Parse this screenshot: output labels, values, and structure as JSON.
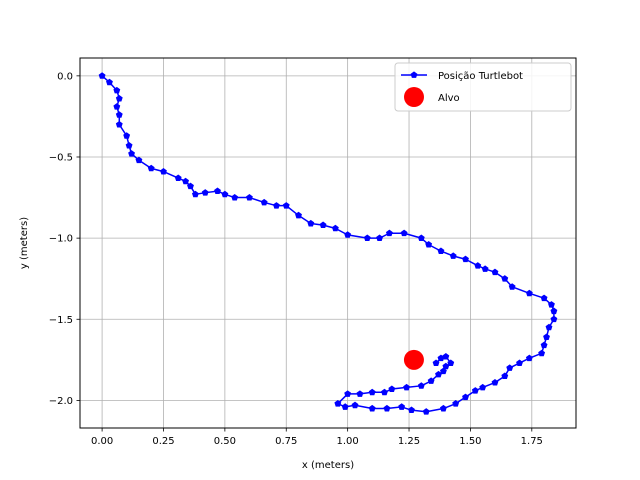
{
  "chart_data": {
    "type": "scatter",
    "title": "",
    "xlabel": "x (meters)",
    "ylabel": "y (meters)",
    "xlim": [
      -0.09,
      1.93
    ],
    "ylim": [
      -2.17,
      0.11
    ],
    "x_ticks": [
      0.0,
      0.25,
      0.5,
      0.75,
      1.0,
      1.25,
      1.5,
      1.75
    ],
    "x_tick_labels": [
      "0.00",
      "0.25",
      "0.50",
      "0.75",
      "1.00",
      "1.25",
      "1.50",
      "1.75"
    ],
    "y_ticks": [
      0.0,
      -0.5,
      -1.0,
      -1.5,
      -2.0
    ],
    "y_tick_labels": [
      "0.0",
      "−0.5",
      "−1.0",
      "−1.5",
      "−2.0"
    ],
    "grid": true,
    "legend_position": "top-right",
    "series": [
      {
        "name": "Posição Turtlebot",
        "style": "line-with-pentagon-markers",
        "color": "#0000ff",
        "points": [
          [
            0.0,
            0.0
          ],
          [
            0.03,
            -0.04
          ],
          [
            0.06,
            -0.09
          ],
          [
            0.07,
            -0.14
          ],
          [
            0.06,
            -0.19
          ],
          [
            0.07,
            -0.24
          ],
          [
            0.07,
            -0.3
          ],
          [
            0.1,
            -0.37
          ],
          [
            0.11,
            -0.43
          ],
          [
            0.12,
            -0.48
          ],
          [
            0.15,
            -0.52
          ],
          [
            0.2,
            -0.57
          ],
          [
            0.25,
            -0.59
          ],
          [
            0.31,
            -0.63
          ],
          [
            0.34,
            -0.65
          ],
          [
            0.36,
            -0.68
          ],
          [
            0.38,
            -0.73
          ],
          [
            0.42,
            -0.72
          ],
          [
            0.47,
            -0.71
          ],
          [
            0.5,
            -0.73
          ],
          [
            0.54,
            -0.75
          ],
          [
            0.6,
            -0.75
          ],
          [
            0.66,
            -0.78
          ],
          [
            0.71,
            -0.8
          ],
          [
            0.75,
            -0.8
          ],
          [
            0.8,
            -0.86
          ],
          [
            0.85,
            -0.91
          ],
          [
            0.9,
            -0.92
          ],
          [
            0.95,
            -0.94
          ],
          [
            1.0,
            -0.98
          ],
          [
            1.08,
            -1.0
          ],
          [
            1.13,
            -1.0
          ],
          [
            1.17,
            -0.97
          ],
          [
            1.23,
            -0.97
          ],
          [
            1.3,
            -1.0
          ],
          [
            1.33,
            -1.04
          ],
          [
            1.38,
            -1.08
          ],
          [
            1.43,
            -1.11
          ],
          [
            1.48,
            -1.13
          ],
          [
            1.53,
            -1.17
          ],
          [
            1.56,
            -1.19
          ],
          [
            1.6,
            -1.21
          ],
          [
            1.64,
            -1.25
          ],
          [
            1.67,
            -1.3
          ],
          [
            1.74,
            -1.34
          ],
          [
            1.8,
            -1.37
          ],
          [
            1.83,
            -1.41
          ],
          [
            1.84,
            -1.45
          ],
          [
            1.84,
            -1.5
          ],
          [
            1.82,
            -1.55
          ],
          [
            1.81,
            -1.61
          ],
          [
            1.8,
            -1.66
          ],
          [
            1.79,
            -1.71
          ],
          [
            1.74,
            -1.74
          ],
          [
            1.7,
            -1.77
          ],
          [
            1.66,
            -1.8
          ],
          [
            1.64,
            -1.85
          ],
          [
            1.6,
            -1.89
          ],
          [
            1.55,
            -1.92
          ],
          [
            1.52,
            -1.94
          ],
          [
            1.48,
            -1.98
          ],
          [
            1.44,
            -2.02
          ],
          [
            1.39,
            -2.05
          ],
          [
            1.32,
            -2.07
          ],
          [
            1.26,
            -2.06
          ],
          [
            1.22,
            -2.04
          ],
          [
            1.16,
            -2.05
          ],
          [
            1.1,
            -2.05
          ],
          [
            1.03,
            -2.03
          ],
          [
            0.99,
            -2.04
          ],
          [
            0.96,
            -2.02
          ],
          [
            1.0,
            -1.96
          ],
          [
            1.05,
            -1.96
          ],
          [
            1.1,
            -1.95
          ],
          [
            1.15,
            -1.95
          ],
          [
            1.18,
            -1.93
          ],
          [
            1.24,
            -1.92
          ],
          [
            1.3,
            -1.91
          ],
          [
            1.34,
            -1.88
          ],
          [
            1.37,
            -1.84
          ],
          [
            1.39,
            -1.82
          ],
          [
            1.4,
            -1.79
          ],
          [
            1.42,
            -1.77
          ],
          [
            1.4,
            -1.73
          ],
          [
            1.38,
            -1.74
          ],
          [
            1.36,
            -1.77
          ]
        ]
      },
      {
        "name": "Alvo",
        "style": "large-circle-marker",
        "color": "#ff0000",
        "points": [
          [
            1.27,
            -1.75
          ]
        ]
      }
    ]
  }
}
